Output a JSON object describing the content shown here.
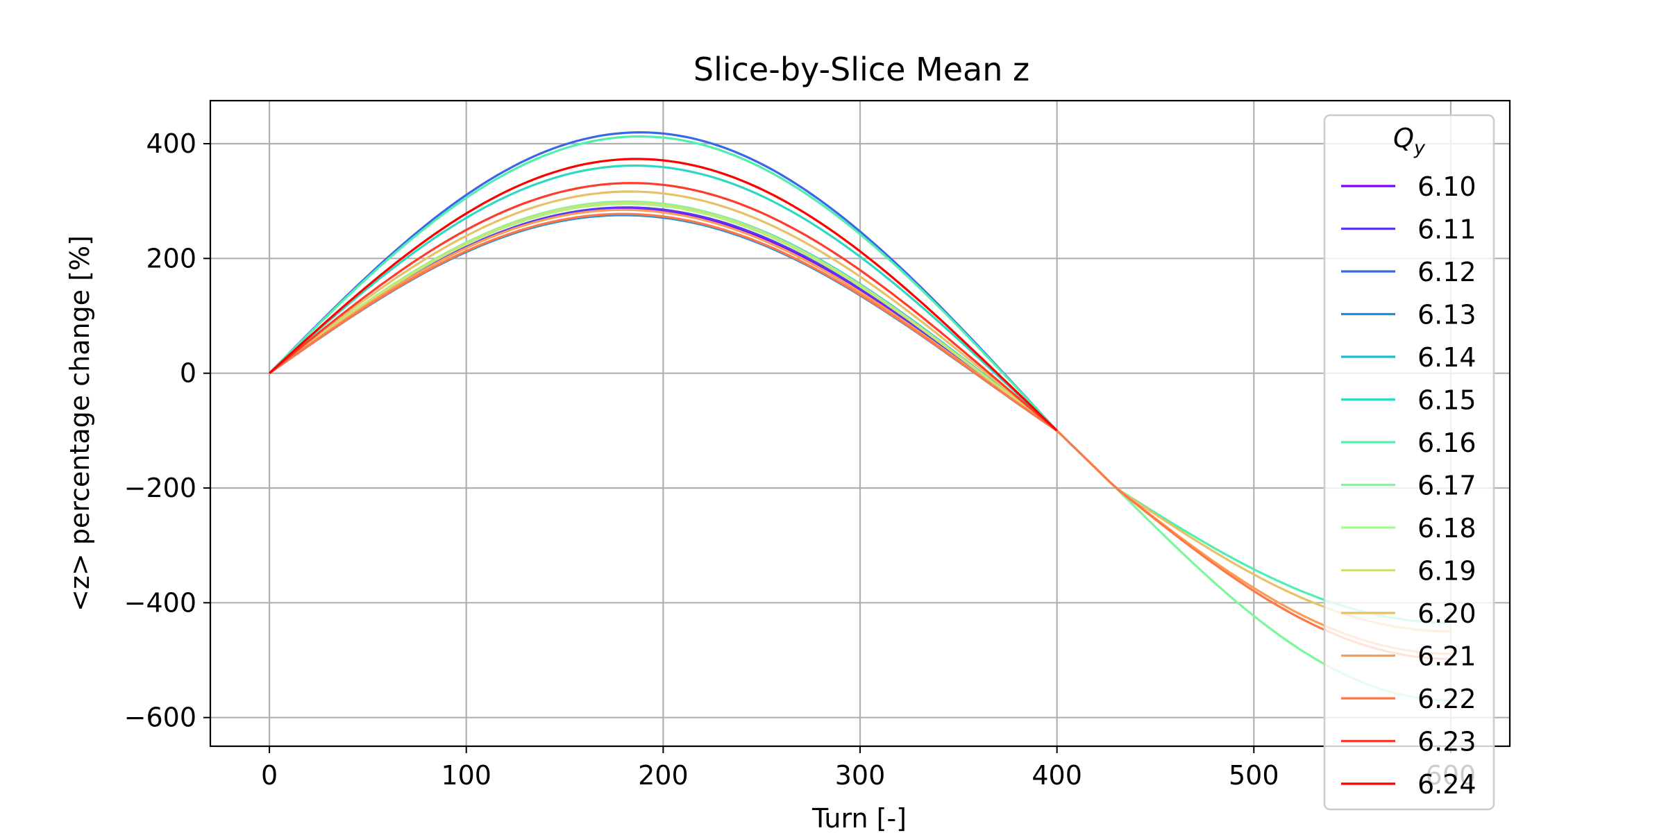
{
  "chart_data": {
    "type": "line",
    "title": "Slice-by-Slice Mean z",
    "xlabel": "Turn [-]",
    "ylabel": "<z> percentage change [%]",
    "xlim": [
      -30,
      630
    ],
    "ylim": [
      -650,
      475
    ],
    "x_ticks": [
      0,
      100,
      200,
      300,
      400,
      500,
      600
    ],
    "x_tick_labels": [
      "0",
      "100",
      "200",
      "300",
      "400",
      "500",
      "600"
    ],
    "y_ticks": [
      400,
      200,
      0,
      -200,
      -400,
      -600
    ],
    "y_tick_labels": [
      "400",
      "200",
      "0",
      "−200",
      "−400",
      "−600"
    ],
    "grid": true,
    "legend": {
      "title": "Q_y",
      "title_base": "Q",
      "title_sub": "y",
      "placement": "upper-right"
    },
    "series": [
      {
        "name": "6.10",
        "color": "#7f00ff",
        "x_end": 400,
        "peak": 288,
        "peak_x": 182,
        "period": 862,
        "amp_scale": 1.0
      },
      {
        "name": "6.11",
        "color": "#5c35f5",
        "x_end": 400,
        "peak": 290,
        "peak_x": 182,
        "period": 862,
        "amp_scale": 1.0
      },
      {
        "name": "6.12",
        "color": "#3a66e8",
        "x_end": 400,
        "peak": 423,
        "peak_x": 190,
        "period": 862,
        "amp_scale": 1.0
      },
      {
        "name": "6.13",
        "color": "#1e90d8",
        "x_end": 400,
        "peak": 276,
        "peak_x": 180,
        "period": 862,
        "amp_scale": 1.0
      },
      {
        "name": "6.14",
        "color": "#16bfd0",
        "x_end": 400,
        "peak": 300,
        "peak_x": 183,
        "period": 862,
        "amp_scale": 1.0
      },
      {
        "name": "6.15",
        "color": "#2ed8c2",
        "x_end": 400,
        "peak": 364,
        "peak_x": 187,
        "period": 862,
        "amp_scale": 1.0
      },
      {
        "name": "6.16",
        "color": "#4ff0ad",
        "x_end": 600,
        "peak": 416,
        "peak_x": 190,
        "period": 862,
        "amp_scale": 1.45
      },
      {
        "name": "6.17",
        "color": "#7cf89a",
        "x_end": 600,
        "peak": 300,
        "peak_x": 182,
        "period": 862,
        "amp_scale": 1.9
      },
      {
        "name": "6.18",
        "color": "#a3fc88",
        "x_end": 400,
        "peak": 296,
        "peak_x": 182,
        "period": 862,
        "amp_scale": 1.0
      },
      {
        "name": "6.19",
        "color": "#cce276",
        "x_end": 400,
        "peak": 298,
        "peak_x": 182,
        "period": 862,
        "amp_scale": 1.0
      },
      {
        "name": "6.20",
        "color": "#e8c167",
        "x_end": 600,
        "peak": 318,
        "peak_x": 184,
        "period": 862,
        "amp_scale": 1.5
      },
      {
        "name": "6.21",
        "color": "#f89e58",
        "x_end": 600,
        "peak": 285,
        "peak_x": 180,
        "period": 862,
        "amp_scale": 1.63
      },
      {
        "name": "6.22",
        "color": "#ff7647",
        "x_end": 600,
        "peak": 278,
        "peak_x": 180,
        "period": 862,
        "amp_scale": 1.66
      },
      {
        "name": "6.23",
        "color": "#ff3b2c",
        "x_end": 400,
        "peak": 333,
        "peak_x": 185,
        "period": 862,
        "amp_scale": 1.0
      },
      {
        "name": "6.24",
        "color": "#ff0000",
        "x_end": 400,
        "peak": 376,
        "peak_x": 188,
        "period": 862,
        "amp_scale": 1.0
      }
    ]
  }
}
